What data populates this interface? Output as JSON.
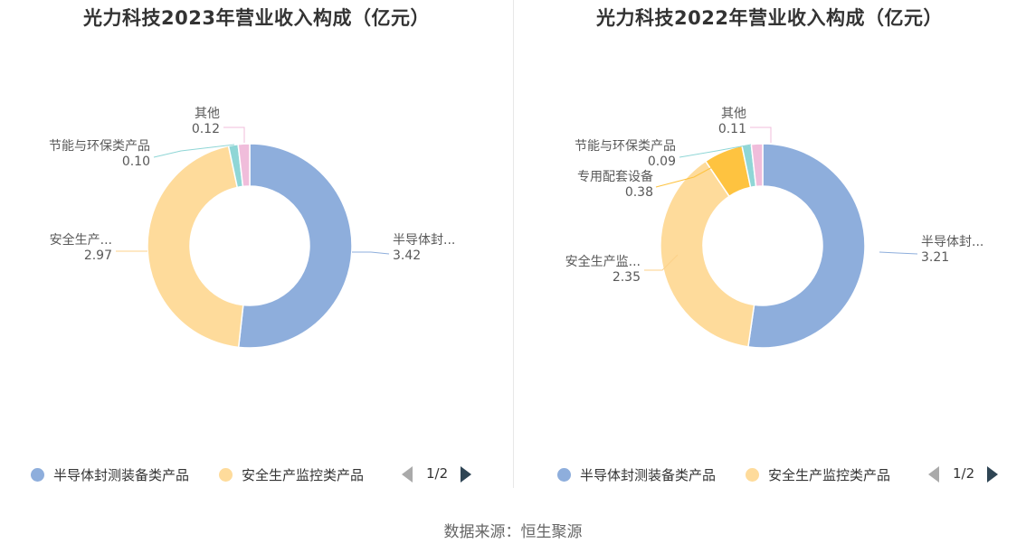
{
  "chart_data": [
    {
      "type": "pie",
      "title": "光力科技2023年营业收入构成（亿元）",
      "slices": [
        {
          "name": "半导体封测装备类产品",
          "label": "半导体封...",
          "value": 3.42,
          "display": "3.42",
          "color": "#8eaedc"
        },
        {
          "name": "安全生产监控类产品",
          "label": "安全生产...",
          "value": 2.97,
          "display": "2.97",
          "color": "#fedb9b"
        },
        {
          "name": "节能与环保类产品",
          "label": "节能与环保类产品",
          "value": 0.1,
          "display": "0.10",
          "color": "#8fd6d6"
        },
        {
          "name": "其他",
          "label": "其他",
          "value": 0.12,
          "display": "0.12",
          "color": "#f0bddb"
        }
      ],
      "legend": {
        "items": [
          "半导体封测装备类产品",
          "安全生产监控类产品"
        ],
        "page": "1/2",
        "position": "bottom"
      }
    },
    {
      "type": "pie",
      "title": "光力科技2022年营业收入构成（亿元）",
      "slices": [
        {
          "name": "半导体封测装备类产品",
          "label": "半导体封...",
          "value": 3.21,
          "display": "3.21",
          "color": "#8eaedc"
        },
        {
          "name": "安全生产监控类产品",
          "label": "安全生产监...",
          "value": 2.35,
          "display": "2.35",
          "color": "#fedb9b"
        },
        {
          "name": "专用配套设备",
          "label": "专用配套设备",
          "value": 0.38,
          "display": "0.38",
          "color": "#fec340"
        },
        {
          "name": "节能与环保类产品",
          "label": "节能与环保类产品",
          "value": 0.09,
          "display": "0.09",
          "color": "#8fd6d6"
        },
        {
          "name": "其他",
          "label": "其他",
          "value": 0.11,
          "display": "0.11",
          "color": "#f0bddb"
        }
      ],
      "legend": {
        "items": [
          "半导体封测装备类产品",
          "安全生产监控类产品"
        ],
        "page": "1/2",
        "position": "bottom"
      }
    }
  ],
  "footer": {
    "source": "数据来源：恒生聚源"
  }
}
